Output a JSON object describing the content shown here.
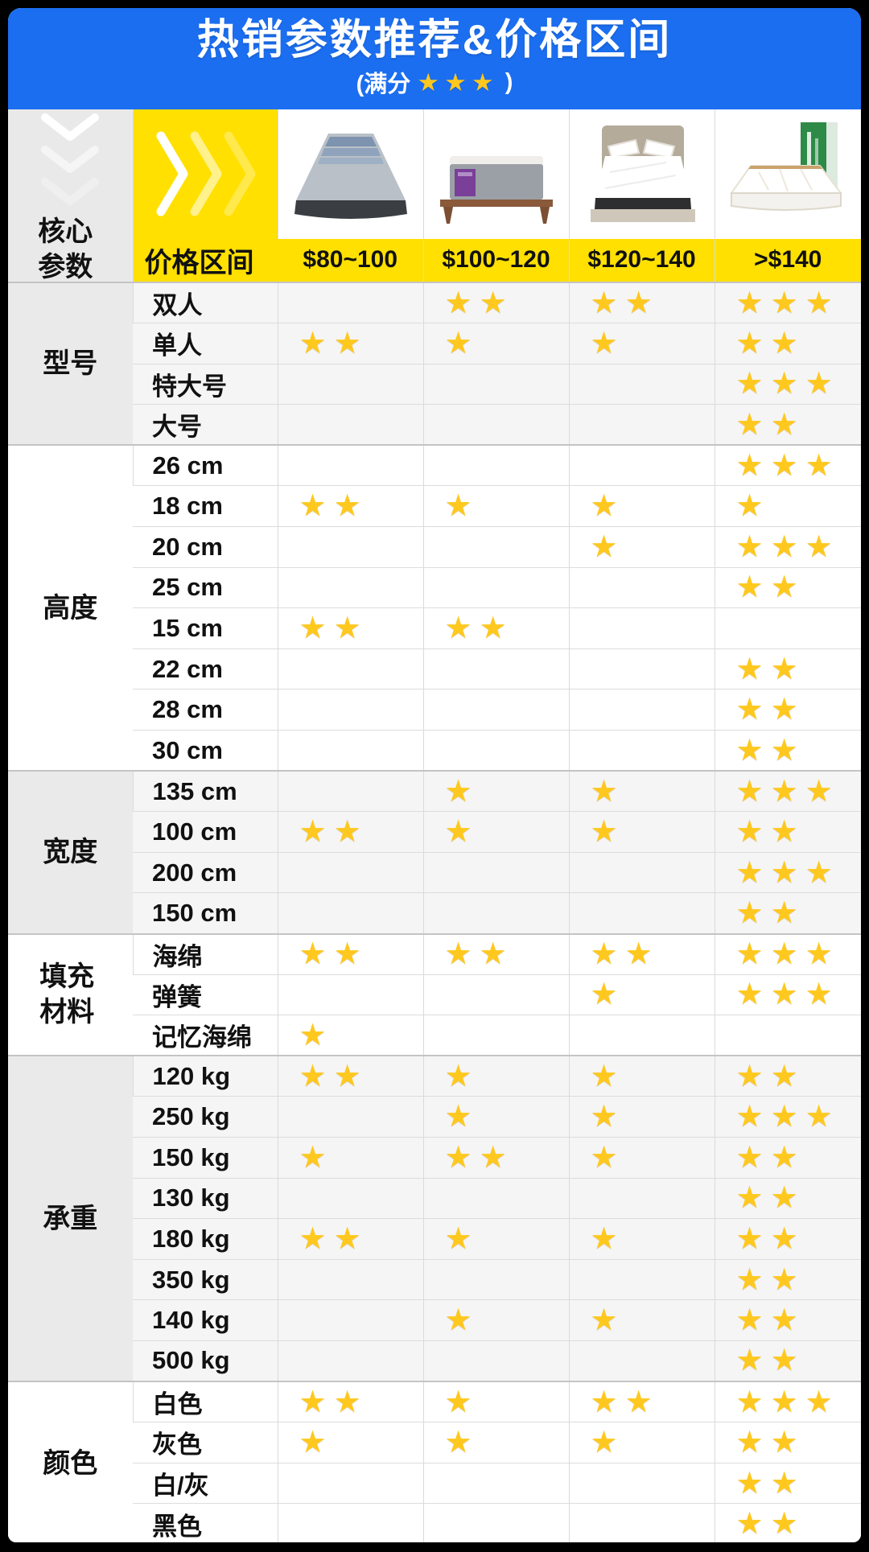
{
  "header": {
    "title": "热销参数推荐&价格区间",
    "subtitle_prefix": "(满分",
    "subtitle_stars": "★★★",
    "subtitle_suffix": ")"
  },
  "table": {
    "corner_label": "核心参数",
    "price_row_label": "价格区间",
    "price_columns": [
      "$80~100",
      "$100~120",
      "$120~140",
      ">$140"
    ],
    "products": [
      "mattress-gray-striped-photo",
      "mattress-on-wood-frame-photo",
      "bed-with-headboard-photo",
      "mattress-with-green-box-photo"
    ]
  },
  "colors": {
    "banner_blue": "#1b6ef0",
    "accent_yellow": "#ffe000",
    "star_gold": "#ffc81e",
    "corner_gray": "#e9e9e9",
    "group_gray_row": "#f5f5f6"
  },
  "chart_data": {
    "type": "table",
    "title": "热销参数推荐&价格区间",
    "subtitle": "(满分 ★★★)",
    "legend": "star counts 0-3 per price range",
    "columns": [
      "核心参数",
      "参数",
      "$80~100",
      "$100~120",
      "$120~140",
      ">$140"
    ],
    "rows": [
      [
        "型号",
        "双人",
        0,
        2,
        2,
        3
      ],
      [
        "型号",
        "单人",
        2,
        1,
        1,
        2
      ],
      [
        "型号",
        "特大号",
        0,
        0,
        0,
        3
      ],
      [
        "型号",
        "大号",
        0,
        0,
        0,
        2
      ],
      [
        "高度",
        "26 cm",
        0,
        0,
        0,
        3
      ],
      [
        "高度",
        "18 cm",
        2,
        1,
        1,
        1
      ],
      [
        "高度",
        "20 cm",
        0,
        0,
        1,
        3
      ],
      [
        "高度",
        "25 cm",
        0,
        0,
        0,
        2
      ],
      [
        "高度",
        "15 cm",
        2,
        2,
        0,
        0
      ],
      [
        "高度",
        "22 cm",
        0,
        0,
        0,
        2
      ],
      [
        "高度",
        "28 cm",
        0,
        0,
        0,
        2
      ],
      [
        "高度",
        "30 cm",
        0,
        0,
        0,
        2
      ],
      [
        "宽度",
        "135 cm",
        0,
        1,
        1,
        3
      ],
      [
        "宽度",
        "100 cm",
        2,
        1,
        1,
        2
      ],
      [
        "宽度",
        "200 cm",
        0,
        0,
        0,
        3
      ],
      [
        "宽度",
        "150 cm",
        0,
        0,
        0,
        2
      ],
      [
        "填充材料",
        "海绵",
        2,
        2,
        2,
        3
      ],
      [
        "填充材料",
        "弹簧",
        0,
        0,
        1,
        3
      ],
      [
        "填充材料",
        "记忆海绵",
        1,
        0,
        0,
        0
      ],
      [
        "承重",
        "120 kg",
        2,
        1,
        1,
        2
      ],
      [
        "承重",
        "250 kg",
        0,
        1,
        1,
        3
      ],
      [
        "承重",
        "150 kg",
        1,
        2,
        1,
        2
      ],
      [
        "承重",
        "130 kg",
        0,
        0,
        0,
        2
      ],
      [
        "承重",
        "180 kg",
        2,
        1,
        1,
        2
      ],
      [
        "承重",
        "350 kg",
        0,
        0,
        0,
        2
      ],
      [
        "承重",
        "140 kg",
        0,
        1,
        1,
        2
      ],
      [
        "承重",
        "500 kg",
        0,
        0,
        0,
        2
      ],
      [
        "颜色",
        "白色",
        2,
        1,
        2,
        3
      ],
      [
        "颜色",
        "灰色",
        1,
        1,
        1,
        2
      ],
      [
        "颜色",
        "白/灰",
        0,
        0,
        0,
        2
      ],
      [
        "颜色",
        "黑色",
        0,
        0,
        0,
        2
      ]
    ]
  }
}
